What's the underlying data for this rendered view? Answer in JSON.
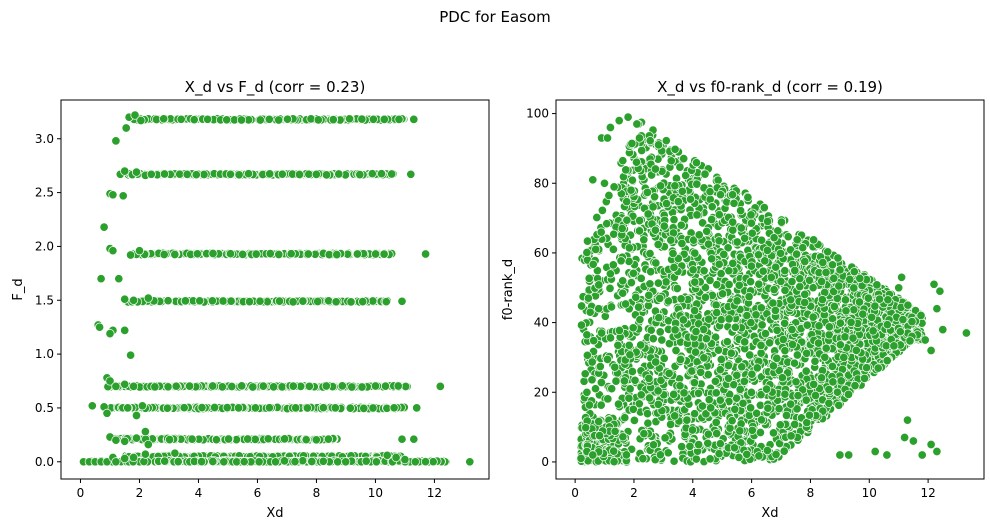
{
  "figure": {
    "suptitle": "PDC for Easom",
    "marker_color": "#2ca02c",
    "marker_edge": "#ffffff"
  },
  "chart_data": [
    {
      "type": "scatter",
      "title": "X_d vs F_d (corr = 0.23)",
      "xlabel": "Xd",
      "ylabel": "F_d",
      "xlim": [
        -0.66,
        13.85
      ],
      "ylim": [
        -0.16,
        3.36
      ],
      "xticks": [
        0,
        2,
        4,
        6,
        8,
        10,
        12
      ],
      "xtick_labels": [
        "0",
        "2",
        "4",
        "6",
        "8",
        "10",
        "12"
      ],
      "yticks": [
        0.0,
        0.5,
        1.0,
        1.5,
        2.0,
        2.5,
        3.0
      ],
      "ytick_labels": [
        "0.0",
        "0.5",
        "1.0",
        "1.5",
        "2.0",
        "2.5",
        "3.0"
      ],
      "grid": false,
      "bands": [
        {
          "y": 3.18,
          "x_start": 1.8,
          "x_end": 11.0
        },
        {
          "y": 2.67,
          "x_start": 1.6,
          "x_end": 10.6
        },
        {
          "y": 1.93,
          "x_start": 1.8,
          "x_end": 10.6
        },
        {
          "y": 1.49,
          "x_start": 1.6,
          "x_end": 10.4
        },
        {
          "y": 0.7,
          "x_start": 0.9,
          "x_end": 11.3
        },
        {
          "y": 0.5,
          "x_start": 1.0,
          "x_end": 11.0
        },
        {
          "y": 0.21,
          "x_start": 1.2,
          "x_end": 8.7
        },
        {
          "y": 0.05,
          "x_start": 1.5,
          "x_end": 10.9
        },
        {
          "y": 0.0,
          "x_start": 0.1,
          "x_end": 12.5
        }
      ],
      "points": [
        [
          13.2,
          0.0
        ],
        [
          11.3,
          3.18
        ],
        [
          10.8,
          3.18
        ],
        [
          10.3,
          3.18
        ],
        [
          11.7,
          1.93
        ],
        [
          10.9,
          1.49
        ],
        [
          11.2,
          2.67
        ],
        [
          12.2,
          0.7
        ],
        [
          11.4,
          0.5
        ],
        [
          11.3,
          0.21
        ],
        [
          10.9,
          0.21
        ],
        [
          0.6,
          1.27
        ],
        [
          0.65,
          1.25
        ],
        [
          0.7,
          1.7
        ],
        [
          0.8,
          2.18
        ],
        [
          1.3,
          1.7
        ],
        [
          1.0,
          2.49
        ],
        [
          1.1,
          2.48
        ],
        [
          1.0,
          1.98
        ],
        [
          1.1,
          1.96
        ],
        [
          1.1,
          1.22
        ],
        [
          1.0,
          1.19
        ],
        [
          1.5,
          1.22
        ],
        [
          1.7,
          0.99
        ],
        [
          1.2,
          2.98
        ],
        [
          1.45,
          2.47
        ],
        [
          1.55,
          3.1
        ],
        [
          1.65,
          3.2
        ],
        [
          1.85,
          3.22
        ],
        [
          2.05,
          3.17
        ],
        [
          1.35,
          2.67
        ],
        [
          1.5,
          2.7
        ],
        [
          1.9,
          2.69
        ],
        [
          2.2,
          2.66
        ],
        [
          2.4,
          2.67
        ],
        [
          2.0,
          1.96
        ],
        [
          1.7,
          1.92
        ],
        [
          1.5,
          1.51
        ],
        [
          1.8,
          1.5
        ],
        [
          2.3,
          1.52
        ],
        [
          0.9,
          0.78
        ],
        [
          1.0,
          0.75
        ],
        [
          1.2,
          0.7
        ],
        [
          1.5,
          0.72
        ],
        [
          1.8,
          0.7
        ],
        [
          0.4,
          0.52
        ],
        [
          0.8,
          0.51
        ],
        [
          0.9,
          0.45
        ],
        [
          1.6,
          0.5
        ],
        [
          1.9,
          0.43
        ],
        [
          2.1,
          0.52
        ],
        [
          1.0,
          0.23
        ],
        [
          1.2,
          0.2
        ],
        [
          1.5,
          0.19
        ],
        [
          1.9,
          0.22
        ],
        [
          2.2,
          0.28
        ],
        [
          2.3,
          0.16
        ],
        [
          0.3,
          0.0
        ],
        [
          0.5,
          0.0
        ],
        [
          0.7,
          0.0
        ],
        [
          0.9,
          0.0
        ],
        [
          1.1,
          0.04
        ],
        [
          1.2,
          0.0
        ],
        [
          1.5,
          0.03
        ],
        [
          1.8,
          0.04
        ],
        [
          2.2,
          0.07
        ],
        [
          3.2,
          0.08
        ],
        [
          10.4,
          0.06
        ],
        [
          10.7,
          0.04
        ],
        [
          11.0,
          0.02
        ]
      ]
    },
    {
      "type": "scatter",
      "title": "X_d vs f0-rank_d (corr = 0.19)",
      "xlabel": "Xd",
      "ylabel": "f0-rank_d",
      "xlim": [
        -0.65,
        13.9
      ],
      "ylim": [
        -4.9,
        103.9
      ],
      "xticks": [
        0,
        2,
        4,
        6,
        8,
        10,
        12
      ],
      "xtick_labels": [
        "0",
        "2",
        "4",
        "6",
        "8",
        "10",
        "12"
      ],
      "yticks": [
        0,
        20,
        40,
        60,
        80,
        100
      ],
      "ytick_labels": [
        "0",
        "20",
        "40",
        "60",
        "80",
        "100"
      ],
      "grid": false,
      "cloud": {
        "x_start": 0.2,
        "x_end": 11.8,
        "peak_x": 2.2,
        "peak_y": 98,
        "floor_y": 0
      },
      "points": [
        [
          13.3,
          37
        ],
        [
          12.5,
          38
        ],
        [
          12.3,
          44
        ],
        [
          12.4,
          49
        ],
        [
          12.2,
          51
        ],
        [
          12.1,
          32
        ],
        [
          11.9,
          35
        ],
        [
          12.3,
          3
        ],
        [
          11.8,
          2
        ],
        [
          12.1,
          5
        ],
        [
          11.3,
          12
        ],
        [
          11.2,
          7
        ],
        [
          11.5,
          6
        ],
        [
          11.1,
          53
        ],
        [
          11.0,
          50
        ],
        [
          10.6,
          2
        ],
        [
          10.2,
          3
        ],
        [
          9.3,
          2
        ],
        [
          9.0,
          2
        ],
        [
          0.6,
          81
        ],
        [
          0.45,
          47
        ],
        [
          0.4,
          20
        ],
        [
          0.9,
          93
        ],
        [
          1.2,
          96
        ],
        [
          1.1,
          93
        ],
        [
          1.8,
          99
        ],
        [
          2.1,
          97
        ],
        [
          1.5,
          98
        ],
        [
          0.8,
          61
        ],
        [
          1.3,
          61
        ],
        [
          0.7,
          61
        ],
        [
          0.2,
          1
        ],
        [
          0.4,
          3
        ],
        [
          0.6,
          2
        ],
        [
          1.0,
          80
        ],
        [
          0.9,
          37
        ],
        [
          0.8,
          44
        ],
        [
          1.2,
          54
        ],
        [
          1.6,
          67
        ],
        [
          1.9,
          78
        ]
      ]
    }
  ]
}
